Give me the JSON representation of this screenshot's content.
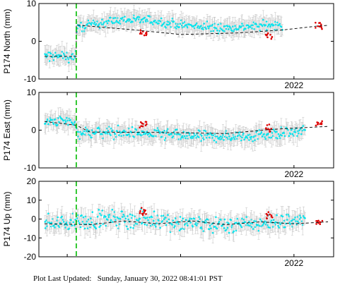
{
  "chart_data": [
    {
      "type": "scatter",
      "station": "P174",
      "component": "North",
      "ylabel": "P174 North (mm)",
      "ylim": [
        -10,
        10
      ],
      "yticks": [
        -10,
        0,
        10
      ],
      "xlim": [
        2019.75,
        2022.35
      ],
      "xticks": [
        {
          "value": 2022.0,
          "label": "2022"
        }
      ],
      "grid": false,
      "series": [
        {
          "kind": "daily",
          "color": "#00e5ee",
          "segments": [
            {
              "x0": 2019.8,
              "x1": 2020.08,
              "offset": -4.0,
              "trend": 0.0,
              "amp": 1.8
            },
            {
              "x0": 2020.08,
              "x1": 2021.9,
              "offset": 3.4,
              "trend": -1.6,
              "amp": 1.5,
              "wiggle": 1.2
            }
          ]
        },
        {
          "kind": "rapid",
          "color": "#dd0000",
          "clusters": [
            {
              "x": 2020.67,
              "y": 2.0
            },
            {
              "x": 2021.78,
              "y": 1.5
            },
            {
              "x": 2022.22,
              "y": 4.2
            }
          ]
        },
        {
          "kind": "model",
          "color": "#000000",
          "style": "dashed",
          "points": [
            [
              2019.8,
              -4.0
            ],
            [
              2020.08,
              -4.0
            ],
            [
              2020.08,
              4.3
            ],
            [
              2020.6,
              3.0
            ],
            [
              2021.0,
              1.8
            ],
            [
              2021.5,
              2.2
            ],
            [
              2021.9,
              3.0
            ],
            [
              2022.2,
              4.0
            ],
            [
              2022.3,
              4.2
            ]
          ]
        }
      ],
      "annotations": {
        "event_line_x": 2020.08,
        "event_line_color": "#00bb00"
      }
    },
    {
      "type": "scatter",
      "station": "P174",
      "component": "East",
      "ylabel": "P174 East (mm)",
      "ylim": [
        -10,
        10
      ],
      "yticks": [
        -10,
        0,
        10
      ],
      "xlim": [
        2019.75,
        2022.35
      ],
      "xticks": [
        {
          "value": 2022.0,
          "label": "2022"
        }
      ],
      "grid": false,
      "series": [
        {
          "kind": "daily",
          "color": "#00e5ee",
          "segments": [
            {
              "x0": 2019.8,
              "x1": 2020.08,
              "offset": 2.0,
              "trend": -0.5,
              "amp": 1.7
            },
            {
              "x0": 2020.08,
              "x1": 2022.1,
              "offset": -0.6,
              "trend": 0.8,
              "amp": 1.8,
              "wiggle": 0.4
            }
          ]
        },
        {
          "kind": "rapid",
          "color": "#dd0000",
          "clusters": [
            {
              "x": 2020.67,
              "y": 1.5
            },
            {
              "x": 2021.78,
              "y": 0.3
            },
            {
              "x": 2022.22,
              "y": 1.8
            }
          ]
        },
        {
          "kind": "model",
          "color": "#000000",
          "style": "dashed",
          "points": [
            [
              2019.8,
              2.3
            ],
            [
              2020.08,
              1.3
            ],
            [
              2020.2,
              -0.5
            ],
            [
              2020.8,
              -0.6
            ],
            [
              2021.4,
              -0.9
            ],
            [
              2021.8,
              0.2
            ],
            [
              2022.3,
              1.0
            ]
          ]
        }
      ],
      "annotations": {
        "event_line_x": 2020.08,
        "event_line_color": "#00bb00"
      }
    },
    {
      "type": "scatter",
      "station": "P174",
      "component": "Up",
      "ylabel": "P174 Up (mm)",
      "ylim": [
        -20,
        20
      ],
      "yticks": [
        -20,
        -10,
        0,
        10,
        20
      ],
      "xlim": [
        2019.75,
        2022.35
      ],
      "xticks": [
        {
          "value": 2022.0,
          "label": "2022"
        }
      ],
      "grid": false,
      "series": [
        {
          "kind": "daily",
          "color": "#00e5ee",
          "segments": [
            {
              "x0": 2019.8,
              "x1": 2020.08,
              "offset": -2.0,
              "trend": 0.0,
              "amp": 5.0
            },
            {
              "x0": 2020.08,
              "x1": 2022.1,
              "offset": -1.5,
              "trend": 0.0,
              "amp": 5.5,
              "wiggle": 1.5
            }
          ]
        },
        {
          "kind": "rapid",
          "color": "#dd0000",
          "clusters": [
            {
              "x": 2020.67,
              "y": 4.0
            },
            {
              "x": 2021.78,
              "y": 2.0
            },
            {
              "x": 2022.22,
              "y": -2.0
            }
          ]
        },
        {
          "kind": "model",
          "color": "#000000",
          "style": "dashed",
          "points": [
            [
              2019.8,
              -2.5
            ],
            [
              2020.2,
              -3.0
            ],
            [
              2020.5,
              -1.0
            ],
            [
              2020.8,
              -2.5
            ],
            [
              2021.1,
              -1.0
            ],
            [
              2021.4,
              -3.0
            ],
            [
              2021.7,
              -1.5
            ],
            [
              2022.0,
              -2.5
            ],
            [
              2022.3,
              -1.5
            ]
          ]
        }
      ],
      "annotations": {
        "event_line_x": 2020.08,
        "event_line_color": "#00bb00"
      }
    }
  ],
  "footer": {
    "label": "Plot Last Updated:",
    "timestamp": "Sunday, January 30, 2022 08:41:01 PST"
  },
  "colors": {
    "daily_points": "#00e5ee",
    "rapid_points": "#dd0000",
    "error_bars": "#c8c8c8",
    "event_line": "#00bb00",
    "model_line": "#000000"
  }
}
